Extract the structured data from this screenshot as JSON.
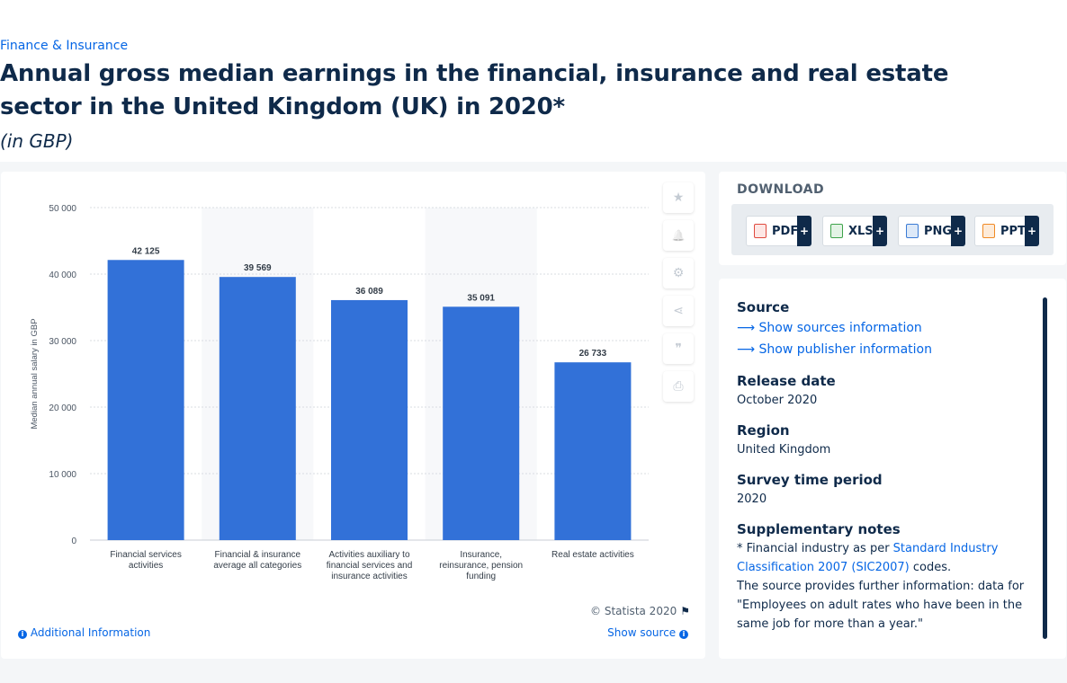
{
  "breadcrumb": "Finance & Insurance",
  "title": "Annual gross median earnings in the financial, insurance and real estate sector in the United Kingdom (UK) in 2020*",
  "subtitle": "(in GBP)",
  "chart_data": {
    "type": "bar",
    "categories": [
      [
        "Financial services",
        "activities"
      ],
      [
        "Financial & insurance",
        "average all categories"
      ],
      [
        "Activities auxiliary to",
        "financial services and",
        "insurance activities"
      ],
      [
        "Insurance,",
        "reinsurance, pension",
        "funding"
      ],
      [
        "Real estate activities"
      ]
    ],
    "values": [
      42125,
      39569,
      36089,
      35091,
      26733
    ],
    "value_labels": [
      "42 125",
      "39 569",
      "36 089",
      "35 091",
      "26 733"
    ],
    "ylabel": "Median annual salary in GBP",
    "ylim": [
      0,
      50000
    ],
    "yticks": [
      0,
      10000,
      20000,
      30000,
      40000,
      50000
    ],
    "ytick_labels": [
      "0",
      "10 000",
      "20 000",
      "30 000",
      "40 000",
      "50 000"
    ],
    "bar_color": "#3271d8",
    "grid": true,
    "legend": "none"
  },
  "tools": [
    {
      "name": "favorite-star-icon",
      "glyph": "★"
    },
    {
      "name": "notification-bell-icon",
      "glyph": "🔔"
    },
    {
      "name": "settings-gear-icon",
      "glyph": "⚙"
    },
    {
      "name": "share-icon",
      "glyph": "⋖"
    },
    {
      "name": "citation-quote-icon",
      "glyph": "❞"
    },
    {
      "name": "print-icon",
      "glyph": "⎙"
    }
  ],
  "copyright": "© Statista 2020",
  "additional_info": "Additional Information",
  "show_source": "Show source",
  "download": {
    "title": "DOWNLOAD",
    "buttons": [
      {
        "label": "PDF",
        "color": "#e04a3f"
      },
      {
        "label": "XLS",
        "color": "#3ea34a"
      },
      {
        "label": "PNG",
        "color": "#3a7bd5"
      },
      {
        "label": "PPT",
        "color": "#f08a24"
      }
    ],
    "plus": "+"
  },
  "info": {
    "source_heading": "Source",
    "show_sources": "Show sources information",
    "show_publisher": "Show publisher information",
    "release_heading": "Release date",
    "release_value": "October 2020",
    "region_heading": "Region",
    "region_value": "United Kingdom",
    "survey_heading": "Survey time period",
    "survey_value": "2020",
    "notes_heading": "Supplementary notes",
    "notes_prefix": "* Financial industry as per ",
    "notes_link": "Standard Industry Classification 2007 (SIC2007)",
    "notes_suffix": " codes.",
    "notes_text": "The source provides further information: data for \"Employees on adult rates who have been in the same job for more than a year.\""
  }
}
